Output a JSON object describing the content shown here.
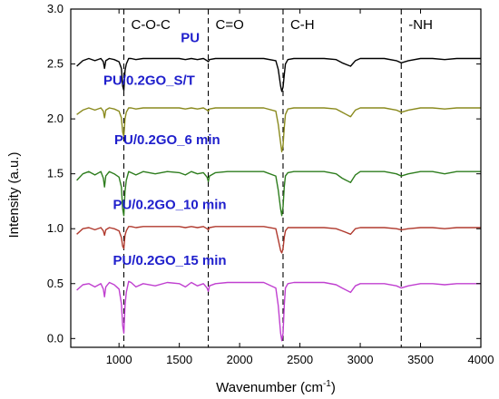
{
  "chart_data": {
    "type": "line",
    "xlabel": "Wavenumber (cm",
    "xlabel_sup": "-1",
    "xlabel_close": ")",
    "ylabel": "Intensity (a.u.)",
    "xlim": [
      600,
      4000
    ],
    "ylim": [
      -0.08,
      3.0
    ],
    "xticks": [
      1000,
      1500,
      2000,
      2500,
      3000,
      3500,
      4000
    ],
    "yticks": [
      0.0,
      0.5,
      1.0,
      1.5,
      2.0,
      2.5,
      3.0
    ],
    "ytick_labels": [
      "0.0",
      "0.5",
      "1.0",
      "1.5",
      "2.0",
      "2.5",
      "3.0"
    ],
    "grid": false,
    "annotations": [
      {
        "label": "C-O-C",
        "x": 1040
      },
      {
        "label": "C=O",
        "x": 1740
      },
      {
        "label": "C-H",
        "x": 2360
      },
      {
        "label": "-NH",
        "x": 3340
      }
    ],
    "series": [
      {
        "name": "PU",
        "color": "#000000",
        "baseline": 2.55,
        "label_pos": [
          1590,
          2.7
        ],
        "x": [
          650,
          700,
          750,
          800,
          850,
          870,
          880,
          890,
          920,
          960,
          1000,
          1020,
          1030,
          1040,
          1050,
          1060,
          1080,
          1100,
          1140,
          1200,
          1300,
          1400,
          1500,
          1550,
          1600,
          1650,
          1700,
          1730,
          1740,
          1750,
          1800,
          1900,
          2000,
          2100,
          2200,
          2300,
          2320,
          2340,
          2350,
          2360,
          2370,
          2380,
          2400,
          2450,
          2500,
          2600,
          2700,
          2800,
          2850,
          2920,
          2960,
          3000,
          3100,
          3200,
          3300,
          3340,
          3400,
          3500,
          3600,
          3700,
          3800,
          3900,
          4000
        ],
        "y": [
          2.48,
          2.53,
          2.55,
          2.53,
          2.55,
          2.52,
          2.46,
          2.53,
          2.55,
          2.54,
          2.52,
          2.46,
          2.3,
          2.26,
          2.44,
          2.5,
          2.55,
          2.55,
          2.54,
          2.55,
          2.55,
          2.55,
          2.55,
          2.54,
          2.55,
          2.54,
          2.55,
          2.53,
          2.52,
          2.54,
          2.55,
          2.55,
          2.55,
          2.55,
          2.55,
          2.53,
          2.45,
          2.3,
          2.25,
          2.29,
          2.4,
          2.5,
          2.54,
          2.55,
          2.55,
          2.55,
          2.55,
          2.54,
          2.51,
          2.48,
          2.53,
          2.55,
          2.55,
          2.55,
          2.53,
          2.51,
          2.53,
          2.55,
          2.55,
          2.54,
          2.55,
          2.55,
          2.55
        ]
      },
      {
        "name": "PU/0.2GO_S/T",
        "color": "#8a8a1e",
        "baseline": 2.1,
        "label_pos": [
          1250,
          2.31
        ],
        "x": [
          650,
          700,
          750,
          800,
          850,
          870,
          880,
          890,
          920,
          960,
          1000,
          1020,
          1030,
          1040,
          1050,
          1060,
          1080,
          1100,
          1140,
          1200,
          1300,
          1400,
          1500,
          1550,
          1600,
          1650,
          1700,
          1730,
          1740,
          1750,
          1800,
          1900,
          2000,
          2100,
          2200,
          2300,
          2320,
          2340,
          2350,
          2360,
          2370,
          2380,
          2400,
          2450,
          2500,
          2600,
          2700,
          2800,
          2850,
          2920,
          2960,
          3000,
          3100,
          3200,
          3300,
          3340,
          3400,
          3500,
          3600,
          3700,
          3800,
          3900,
          4000
        ],
        "y": [
          2.04,
          2.08,
          2.1,
          2.08,
          2.1,
          2.07,
          2.01,
          2.08,
          2.1,
          2.09,
          2.07,
          2.01,
          1.88,
          1.84,
          2.0,
          2.06,
          2.1,
          2.1,
          2.09,
          2.1,
          2.1,
          2.1,
          2.1,
          2.09,
          2.1,
          2.09,
          2.1,
          2.08,
          2.07,
          2.09,
          2.1,
          2.1,
          2.1,
          2.1,
          2.1,
          2.07,
          1.95,
          1.78,
          1.7,
          1.76,
          1.92,
          2.04,
          2.09,
          2.1,
          2.1,
          2.1,
          2.1,
          2.09,
          2.06,
          2.02,
          2.08,
          2.1,
          2.1,
          2.1,
          2.08,
          2.06,
          2.08,
          2.1,
          2.1,
          2.09,
          2.1,
          2.1,
          2.1
        ]
      },
      {
        "name": "PU/0.2GO_6 min",
        "color": "#2e7d1e",
        "baseline": 1.52,
        "label_pos": [
          1400,
          1.77
        ],
        "x": [
          650,
          700,
          750,
          800,
          850,
          870,
          880,
          890,
          920,
          960,
          1000,
          1020,
          1030,
          1040,
          1050,
          1060,
          1080,
          1100,
          1140,
          1200,
          1300,
          1400,
          1500,
          1550,
          1600,
          1650,
          1700,
          1730,
          1740,
          1750,
          1800,
          1900,
          2000,
          2100,
          2200,
          2300,
          2320,
          2340,
          2350,
          2360,
          2370,
          2380,
          2400,
          2450,
          2500,
          2600,
          2700,
          2800,
          2850,
          2920,
          2960,
          3000,
          3100,
          3200,
          3300,
          3340,
          3400,
          3500,
          3600,
          3700,
          3800,
          3900,
          4000
        ],
        "y": [
          1.44,
          1.5,
          1.52,
          1.49,
          1.52,
          1.46,
          1.38,
          1.48,
          1.52,
          1.5,
          1.47,
          1.38,
          1.18,
          1.12,
          1.34,
          1.44,
          1.52,
          1.51,
          1.49,
          1.52,
          1.5,
          1.52,
          1.51,
          1.49,
          1.52,
          1.5,
          1.51,
          1.47,
          1.43,
          1.48,
          1.51,
          1.52,
          1.52,
          1.52,
          1.52,
          1.48,
          1.35,
          1.18,
          1.12,
          1.2,
          1.38,
          1.48,
          1.51,
          1.52,
          1.52,
          1.52,
          1.52,
          1.5,
          1.46,
          1.42,
          1.49,
          1.52,
          1.52,
          1.52,
          1.5,
          1.48,
          1.5,
          1.52,
          1.52,
          1.5,
          1.52,
          1.52,
          1.52
        ]
      },
      {
        "name": "PU/0.2GO_10 min",
        "color": "#b03a2e",
        "baseline": 1.01,
        "label_pos": [
          1420,
          1.18
        ],
        "x": [
          650,
          700,
          750,
          800,
          850,
          870,
          880,
          890,
          920,
          960,
          1000,
          1020,
          1030,
          1040,
          1050,
          1060,
          1080,
          1100,
          1140,
          1200,
          1300,
          1400,
          1500,
          1550,
          1600,
          1650,
          1700,
          1730,
          1740,
          1750,
          1800,
          1900,
          2000,
          2100,
          2200,
          2300,
          2320,
          2340,
          2350,
          2360,
          2370,
          2380,
          2400,
          2450,
          2500,
          2600,
          2700,
          2800,
          2850,
          2920,
          2960,
          3000,
          3100,
          3200,
          3300,
          3340,
          3400,
          3500,
          3600,
          3700,
          3800,
          3900,
          4000
        ],
        "y": [
          0.95,
          1.0,
          1.01,
          0.99,
          1.01,
          0.98,
          0.94,
          0.99,
          1.01,
          1.0,
          0.98,
          0.92,
          0.84,
          0.82,
          0.94,
          0.98,
          1.02,
          1.02,
          1.01,
          1.02,
          1.02,
          1.02,
          1.02,
          1.01,
          1.02,
          1.01,
          1.02,
          1.0,
          0.99,
          1.01,
          1.02,
          1.02,
          1.02,
          1.02,
          1.02,
          1.0,
          0.9,
          0.8,
          0.78,
          0.82,
          0.92,
          0.98,
          1.01,
          1.01,
          1.01,
          1.01,
          1.01,
          1.0,
          0.98,
          0.95,
          1.0,
          1.01,
          1.01,
          1.01,
          1.0,
          0.99,
          1.0,
          1.01,
          1.01,
          1.0,
          1.01,
          1.01,
          1.01
        ]
      },
      {
        "name": "PU/0.2GO_15 min",
        "color": "#c040d0",
        "baseline": 0.5,
        "label_pos": [
          1420,
          0.67
        ],
        "x": [
          650,
          700,
          750,
          800,
          850,
          870,
          880,
          890,
          920,
          960,
          1000,
          1020,
          1030,
          1040,
          1050,
          1060,
          1080,
          1100,
          1140,
          1200,
          1300,
          1400,
          1500,
          1550,
          1600,
          1650,
          1700,
          1730,
          1740,
          1750,
          1800,
          1900,
          2000,
          2100,
          2200,
          2300,
          2320,
          2340,
          2350,
          2360,
          2370,
          2380,
          2400,
          2450,
          2500,
          2600,
          2700,
          2800,
          2850,
          2920,
          2960,
          3000,
          3100,
          3200,
          3300,
          3340,
          3400,
          3500,
          3600,
          3700,
          3800,
          3900,
          4000
        ],
        "y": [
          0.44,
          0.49,
          0.5,
          0.47,
          0.5,
          0.45,
          0.38,
          0.47,
          0.51,
          0.49,
          0.45,
          0.32,
          0.12,
          0.05,
          0.3,
          0.42,
          0.52,
          0.51,
          0.47,
          0.5,
          0.48,
          0.51,
          0.5,
          0.47,
          0.51,
          0.48,
          0.5,
          0.46,
          0.43,
          0.48,
          0.5,
          0.51,
          0.51,
          0.51,
          0.51,
          0.46,
          0.3,
          0.05,
          -0.02,
          0.05,
          0.3,
          0.46,
          0.5,
          0.51,
          0.51,
          0.51,
          0.51,
          0.49,
          0.46,
          0.42,
          0.48,
          0.5,
          0.5,
          0.5,
          0.48,
          0.46,
          0.48,
          0.5,
          0.5,
          0.49,
          0.5,
          0.5,
          0.5
        ]
      }
    ],
    "label_color": "#1f1fcc"
  }
}
